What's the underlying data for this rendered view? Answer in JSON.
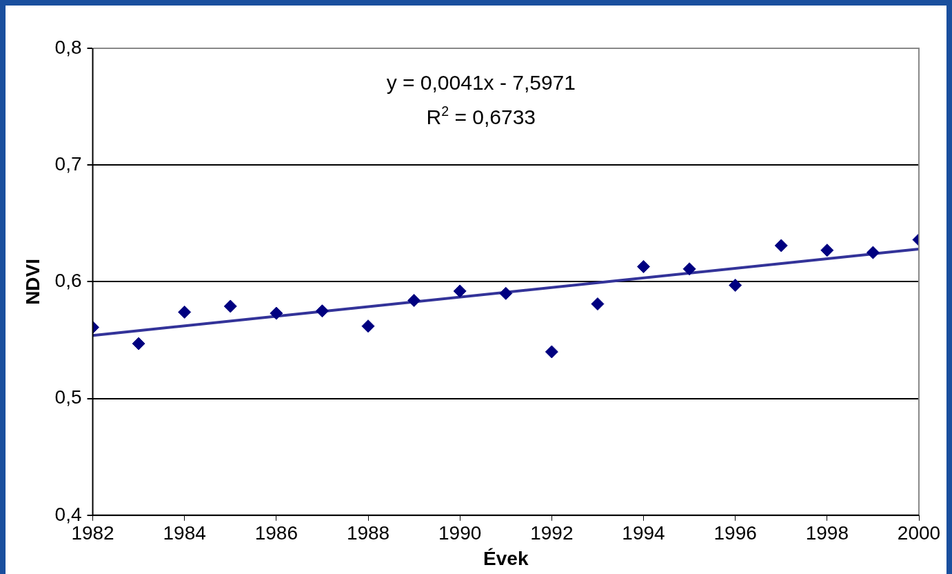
{
  "chart_data": {
    "type": "scatter",
    "xlabel": "Évek",
    "ylabel": "NDVI",
    "annotations": [
      "y = 0,0041x - 7,5971",
      "R$^{2}$ = 0,6733"
    ],
    "x": [
      1982,
      1983,
      1984,
      1985,
      1986,
      1987,
      1988,
      1989,
      1990,
      1991,
      1992,
      1993,
      1994,
      1995,
      1996,
      1997,
      1998,
      1999,
      2000
    ],
    "series": [
      {
        "type": "scatter",
        "color": "#000080",
        "values": [
          0.561,
          0.547,
          0.574,
          0.579,
          0.573,
          0.575,
          0.562,
          0.584,
          0.592,
          0.59,
          0.54,
          0.581,
          0.613,
          0.611,
          0.597,
          0.631,
          0.627,
          0.625,
          0.636
        ]
      },
      {
        "type": "line",
        "color": "#333399",
        "marker": "none",
        "x": [
          1982,
          2000
        ],
        "values": [
          0.554,
          0.628
        ]
      }
    ],
    "xlim": [
      1982,
      2000
    ],
    "xticks": [
      1982,
      1984,
      1986,
      1988,
      1990,
      1992,
      1994,
      1996,
      1998,
      2000
    ],
    "ylim": [
      0.4,
      0.8
    ],
    "yticks": [
      {
        "value": 0.4,
        "label": "0,4"
      },
      {
        "value": 0.5,
        "label": "0,5"
      },
      {
        "value": 0.6,
        "label": "0,6"
      },
      {
        "value": 0.7,
        "label": "0,7"
      },
      {
        "value": 0.8,
        "label": "0,8"
      }
    ],
    "grid": "y",
    "marker": "diamond",
    "line_style": "solid"
  }
}
